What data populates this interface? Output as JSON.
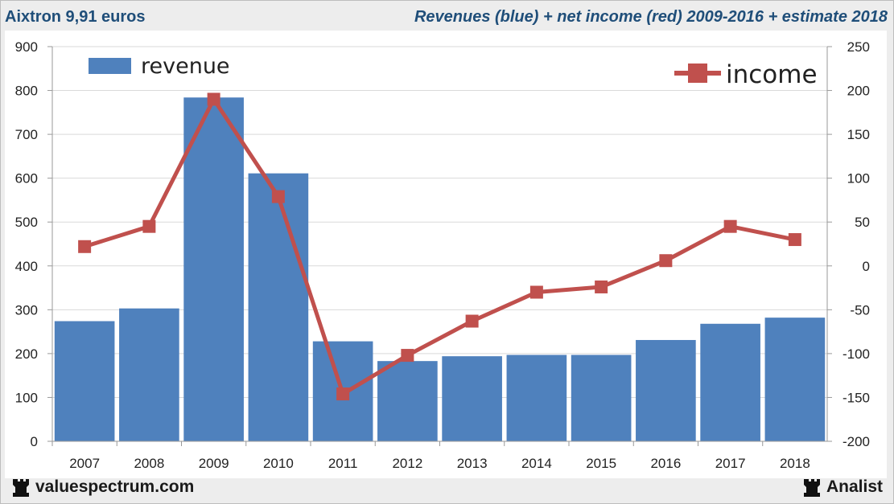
{
  "header": {
    "left_title": "Aixtron 9,91 euros",
    "right_title": "Revenues (blue) + net income (red) 2009-2016 + estimate 2018"
  },
  "footer": {
    "left_brand": "valuespectrum.com",
    "left_icon": "rook-icon",
    "right_brand": "Analist",
    "right_icon": "rook-icon"
  },
  "colors": {
    "revenue_bar": "#4f81bd",
    "income_line": "#c0504d",
    "header_text": "#1f4e79"
  },
  "chart_data": {
    "type": "bar+line",
    "categories": [
      "2007",
      "2008",
      "2009",
      "2010",
      "2011",
      "2012",
      "2013",
      "2014",
      "2015",
      "2016",
      "2017",
      "2018"
    ],
    "series": [
      {
        "name": "revenue",
        "type": "bar",
        "axis": "left",
        "values": [
          274,
          303,
          784,
          611,
          228,
          183,
          194,
          197,
          197,
          231,
          268,
          282
        ]
      },
      {
        "name": "income",
        "type": "line",
        "axis": "right",
        "values": [
          22,
          45,
          190,
          79,
          -146,
          -102,
          -63,
          -30,
          -24,
          6,
          45,
          30
        ]
      }
    ],
    "y_left": {
      "min": 0,
      "max": 900,
      "ticks": [
        "0",
        "100",
        "200",
        "300",
        "400",
        "500",
        "600",
        "700",
        "800",
        "900"
      ]
    },
    "y_right": {
      "min": -200,
      "max": 250,
      "ticks": [
        "-200",
        "-150",
        "-100",
        "-50",
        "0",
        "50",
        "100",
        "150",
        "200",
        "250"
      ]
    },
    "legend": [
      {
        "label": "revenue",
        "position": "top-left"
      },
      {
        "label": "income",
        "position": "top-right"
      }
    ],
    "grid": true
  }
}
